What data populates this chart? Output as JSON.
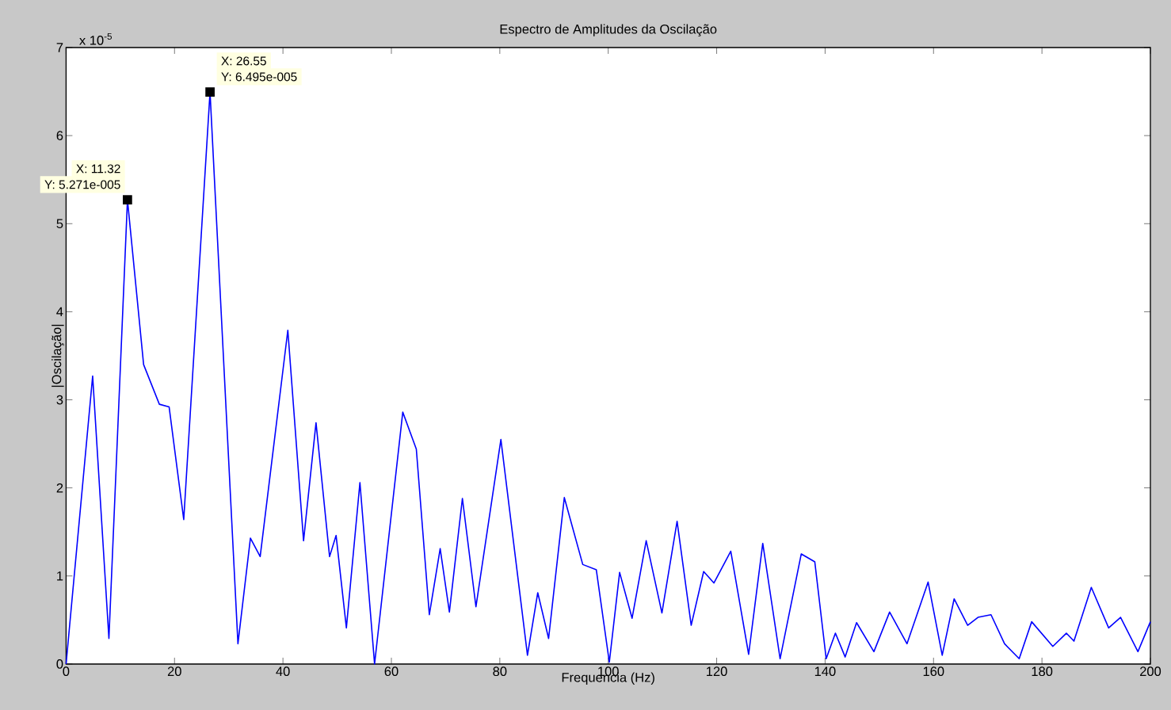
{
  "chart_data": {
    "type": "line",
    "title": "Espectro de Amplitudes da Oscilação",
    "xlabel": "Frequencia (Hz)",
    "ylabel": "|Oscilação|",
    "xlim": [
      0,
      200
    ],
    "xticks": [
      0,
      20,
      40,
      60,
      80,
      100,
      120,
      140,
      160,
      180,
      200
    ],
    "ylim": [
      0,
      7
    ],
    "yticks": [
      0,
      1,
      2,
      3,
      4,
      5,
      6,
      7
    ],
    "grid": false,
    "marker": "none",
    "line_style": "solid",
    "annotations": [
      "x 10$^{-5}$",
      {
        "text": "X: 26.55",
        "x": 26.55,
        "y": 6.495
      },
      "Y: 6.495e-005",
      {
        "text": "X: 11.32",
        "x": 11.32,
        "y": 5.271
      },
      "Y: 5.271e-005"
    ],
    "series": [
      {
        "color": "#0000ff",
        "x": [
          0,
          4.9,
          7.9,
          11.32,
          14.3,
          17.2,
          19,
          21.7,
          26.55,
          31.7,
          34,
          35.8,
          40.9,
          43.8,
          46.1,
          48.6,
          49.8,
          51.7,
          54.2,
          56.9,
          62.1,
          64.6,
          67.0,
          69.0,
          70.7,
          73.1,
          75.6,
          80.2,
          85.1,
          87.0,
          89.0,
          91.9,
          95.3,
          97.8,
          100.2,
          102.1,
          104.4,
          107.0,
          109.9,
          112.7,
          115.3,
          117.6,
          119.5,
          122.6,
          125.9,
          128.5,
          131.7,
          135.6,
          138.1,
          140.2,
          141.9,
          143.7,
          145.8,
          149.0,
          151.9,
          155.1,
          159.0,
          161.6,
          163.8,
          166.3,
          168.2,
          170.6,
          173.1,
          175.8,
          178.1,
          182.0,
          184.5,
          185.9,
          189.1,
          192.3,
          194.5,
          197.7,
          200
        ],
        "values": [
          0,
          3.27,
          0.29,
          5.271,
          3.4,
          2.95,
          2.92,
          1.64,
          6.495,
          0.23,
          1.43,
          1.22,
          3.79,
          1.4,
          2.74,
          1.22,
          1.46,
          0.41,
          2.06,
          0.0,
          2.86,
          2.44,
          0.56,
          1.31,
          0.59,
          1.88,
          0.65,
          2.55,
          0.1,
          0.81,
          0.29,
          1.89,
          1.13,
          1.07,
          0.02,
          1.04,
          0.52,
          1.4,
          0.58,
          1.62,
          0.44,
          1.05,
          0.92,
          1.28,
          0.11,
          1.37,
          0.06,
          1.25,
          1.16,
          0.06,
          0.35,
          0.08,
          0.47,
          0.14,
          0.59,
          0.23,
          0.93,
          0.1,
          0.74,
          0.44,
          0.53,
          0.56,
          0.23,
          0.06,
          0.48,
          0.2,
          0.35,
          0.26,
          0.87,
          0.41,
          0.53,
          0.14,
          0.48
        ]
      }
    ]
  }
}
